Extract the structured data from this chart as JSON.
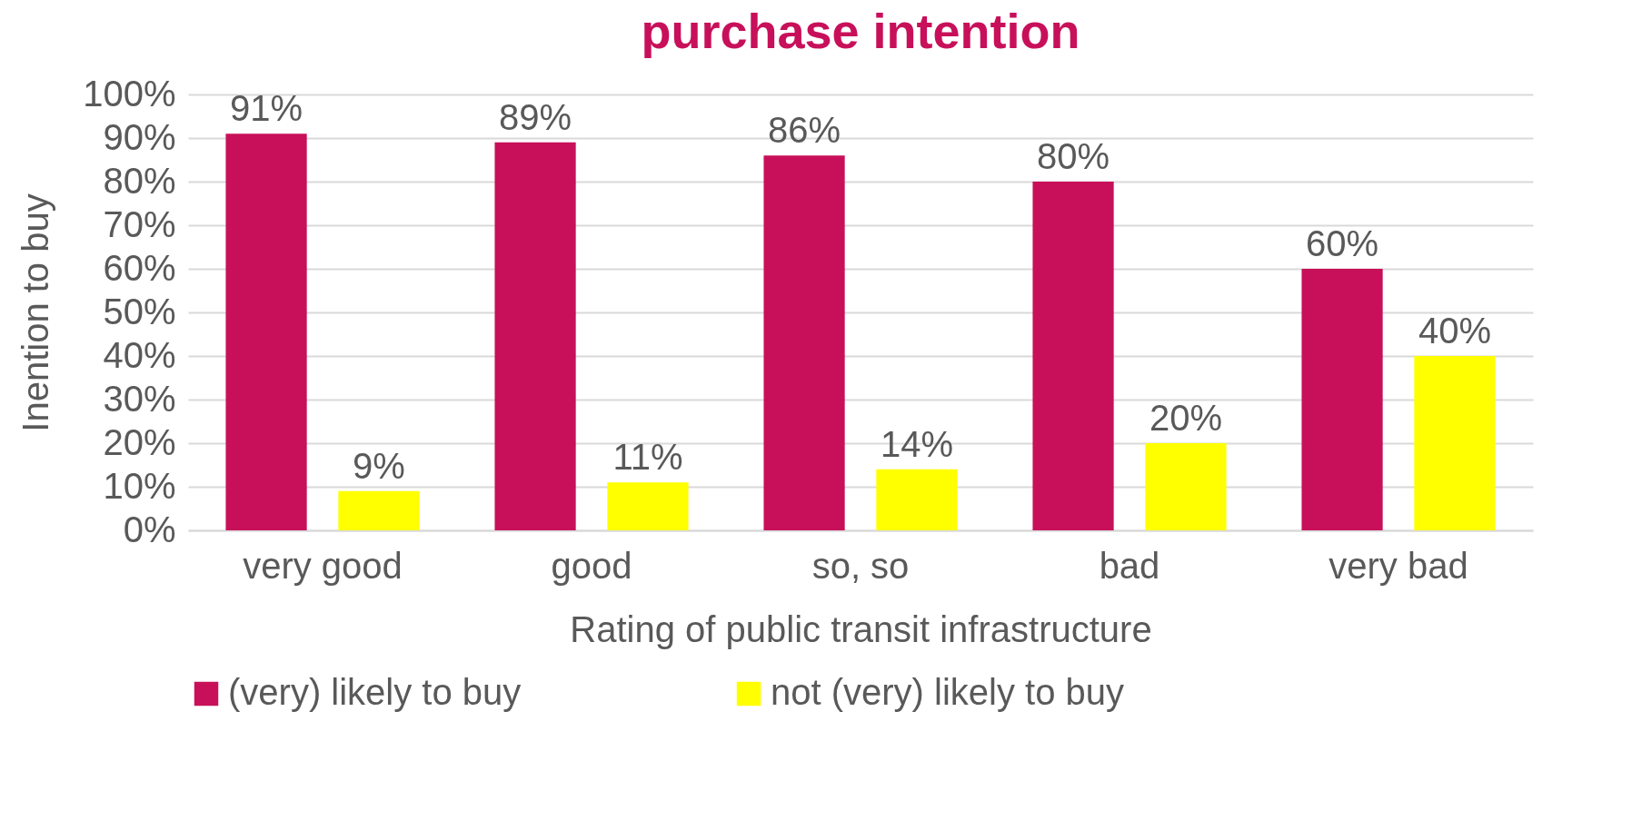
{
  "chart_data": {
    "type": "bar",
    "title": "purchase intention",
    "xlabel": "Rating of public transit infrastructure",
    "ylabel": "Inention to buy",
    "categories": [
      "very good",
      "good",
      "so, so",
      "bad",
      "very bad"
    ],
    "series": [
      {
        "name": "(very) likely to buy",
        "color": "#c8105a",
        "values": [
          91,
          89,
          86,
          80,
          60
        ],
        "value_labels": [
          "91%",
          "89%",
          "86%",
          "80%",
          "60%"
        ]
      },
      {
        "name": "not (very) likely to buy",
        "color": "#ffff00",
        "values": [
          9,
          11,
          14,
          20,
          40
        ],
        "value_labels": [
          "9%",
          "11%",
          "14%",
          "20%",
          "40%"
        ]
      }
    ],
    "ylim": [
      0,
      100
    ],
    "yticks": [
      {
        "value": 0,
        "label": "0%"
      },
      {
        "value": 10,
        "label": "10%"
      },
      {
        "value": 20,
        "label": "20%"
      },
      {
        "value": 30,
        "label": "30%"
      },
      {
        "value": 40,
        "label": "40%"
      },
      {
        "value": 50,
        "label": "50%"
      },
      {
        "value": 60,
        "label": "60%"
      },
      {
        "value": 70,
        "label": "70%"
      },
      {
        "value": 80,
        "label": "80%"
      },
      {
        "value": 90,
        "label": "90%"
      },
      {
        "value": 100,
        "label": "100%"
      }
    ],
    "grid": "y",
    "legend": "bottom"
  }
}
